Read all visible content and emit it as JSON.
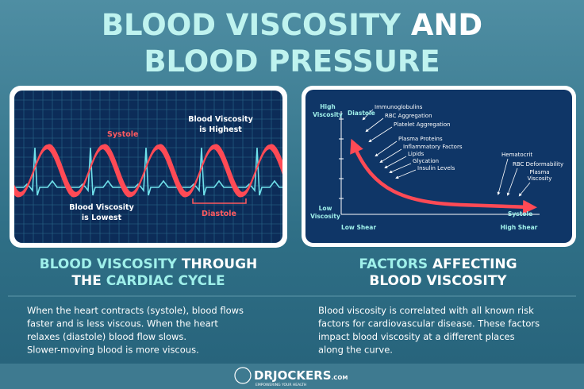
{
  "title": {
    "line1": [
      "BLOOD VISCOSITY",
      "AND"
    ],
    "line2": "BLOOD PRESSURE"
  },
  "left_panel": {
    "systole": "Systole",
    "highest": [
      "Blood Viscosity",
      "is Highest"
    ],
    "lowest": [
      "Blood Viscosity",
      "is Lowest"
    ],
    "diastole": "Diastole"
  },
  "right_panel": {
    "y_high": [
      "High",
      "Viscosity"
    ],
    "y_low": [
      "Low",
      "Viscosity"
    ],
    "x_low": "Low Shear",
    "x_high": "High Shear",
    "diastole": "Diastole",
    "systole": "Systole",
    "factors": [
      "Immunoglobulins",
      "RBC Aggregation",
      "Platelet Aggregation",
      "Plasma Proteins",
      "Inflammatory Factors",
      "Lipids",
      "Glycation",
      "Insulin Levels",
      "Hematocrit",
      "RBC Deformability",
      [
        "Plasma",
        "Viscosity"
      ]
    ]
  },
  "left_section": {
    "heading": [
      "BLOOD VISCOSITY",
      "THROUGH",
      "THE",
      "CARDIAC CYCLE"
    ],
    "paragraph": [
      "When the heart contracts (systole), blood flows",
      "faster and is less viscous. When the heart",
      "relaxes (diastole) blood flow slows.",
      "Slower-moving blood is more viscous."
    ]
  },
  "right_section": {
    "heading": [
      "FACTORS",
      "AFFECTING",
      "BLOOD VISCOSITY"
    ],
    "paragraph": [
      "Blood viscosity is correlated with all known risk",
      "factors for cardiovascular disease. These factors",
      "impact blood viscosity at a different places",
      "along the curve."
    ]
  },
  "footer": {
    "brand": "DRJOCKERS",
    "domain": ".COM",
    "tagline": "EMPOWERING YOUR HEALTH"
  }
}
